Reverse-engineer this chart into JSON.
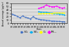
{
  "years": [
    1990,
    1991,
    1992,
    1993,
    1994,
    1995,
    1996,
    1997,
    1998,
    1999,
    2000,
    2001,
    2002,
    2003,
    2004,
    2005,
    2006,
    2007,
    2008,
    2009,
    2010
  ],
  "SO2": [
    28,
    24,
    21,
    17,
    22,
    18,
    16,
    13,
    20,
    15,
    12,
    11,
    10,
    9,
    8,
    7,
    7,
    6,
    6,
    5,
    5
  ],
  "NO2": [
    null,
    null,
    null,
    null,
    null,
    null,
    null,
    null,
    null,
    null,
    35,
    34,
    33,
    33,
    32,
    31,
    30,
    29,
    28,
    27,
    26
  ],
  "O3": [
    null,
    null,
    null,
    null,
    null,
    null,
    null,
    null,
    null,
    null,
    29,
    29,
    30,
    30,
    30,
    30,
    31,
    31,
    31,
    31,
    31
  ],
  "PM10": [
    null,
    null,
    null,
    null,
    null,
    null,
    null,
    null,
    null,
    null,
    45,
    47,
    50,
    55,
    52,
    50,
    50,
    52,
    48,
    46,
    47
  ],
  "colors": {
    "SO2": "#4472C4",
    "NO2": "#00B0F0",
    "O3": "#FFFF00",
    "PM10": "#FF00FF"
  },
  "ylim": [
    0,
    60
  ],
  "yticks": [
    0,
    10,
    20,
    30,
    40,
    50,
    60
  ],
  "ylabel": "Annual average (µg/m³)",
  "xlabel": "Years",
  "bg_color": "#D3D3D3",
  "grid_color": "#FFFFFF",
  "figsize": [
    1.0,
    0.69
  ],
  "dpi": 100
}
